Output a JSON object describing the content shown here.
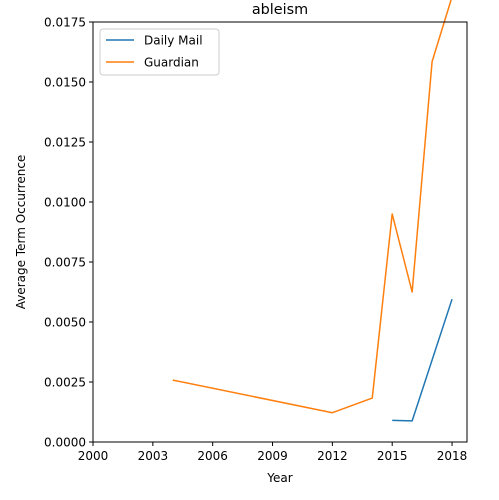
{
  "chart_data": {
    "type": "line",
    "title": "ableism",
    "xlabel": "Year",
    "ylabel": "Average Term Occurrence",
    "xlim": [
      2000,
      2018.75
    ],
    "ylim": [
      0,
      0.0175
    ],
    "xticks": [
      2000,
      2003,
      2006,
      2009,
      2012,
      2015,
      2018
    ],
    "xtick_labels": [
      "2000",
      "2003",
      "2006",
      "2009",
      "2012",
      "2015",
      "2018"
    ],
    "yticks": [
      0,
      0.0025,
      0.005,
      0.0075,
      0.01,
      0.0125,
      0.015,
      0.0175
    ],
    "ytick_labels": [
      "0.0000",
      "0.0025",
      "0.0050",
      "0.0075",
      "0.0100",
      "0.0125",
      "0.0150",
      "0.0175"
    ],
    "grid": false,
    "legend_position": "top-left",
    "series": [
      {
        "name": "Daily Mail",
        "color": "#1f77b4",
        "x": [
          2015,
          2016,
          2018
        ],
        "y": [
          0.0009,
          0.00088,
          0.00595
        ]
      },
      {
        "name": "Guardian",
        "color": "#ff7f0e",
        "x": [
          2004,
          2012,
          2014,
          2015,
          2016,
          2017,
          2018
        ],
        "y": [
          0.00258,
          0.00122,
          0.00183,
          0.0095,
          0.00625,
          0.01585,
          0.01855
        ]
      }
    ]
  }
}
